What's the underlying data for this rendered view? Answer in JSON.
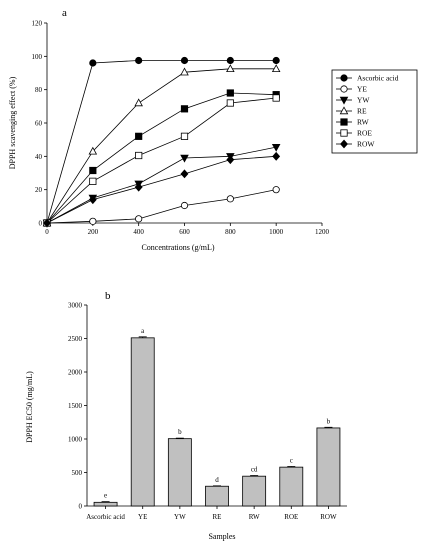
{
  "chart_data": [
    {
      "type": "line",
      "panel_label": "a",
      "xlabel": "Concentrations (\u0003g/mL)",
      "ylabel": "DPPH scavenging effect (%)",
      "xlim": [
        0,
        1200
      ],
      "ylim": [
        0,
        120
      ],
      "x_ticks": [
        "0",
        "200",
        "400",
        "600",
        "800",
        "1000",
        "1200"
      ],
      "y_ticks": [
        "0",
        "20",
        "40",
        "60",
        "80",
        "100",
        "120"
      ],
      "legend_position": "right",
      "x": [
        0,
        200,
        400,
        600,
        800,
        1000
      ],
      "series": [
        {
          "name": "Ascorbic acid",
          "marker": "filled-circle",
          "values": [
            0,
            96,
            97.5,
            97.5,
            97.5,
            97.5
          ]
        },
        {
          "name": "YE",
          "marker": "open-circle",
          "values": [
            0,
            1,
            2.5,
            10.5,
            14.5,
            20
          ]
        },
        {
          "name": "YW",
          "marker": "filled-triangle-down",
          "values": [
            0,
            15,
            23.5,
            39,
            40,
            45.5
          ]
        },
        {
          "name": "RE",
          "marker": "open-triangle-up",
          "values": [
            0,
            43,
            72,
            90.5,
            92.5,
            92.5
          ]
        },
        {
          "name": "RW",
          "marker": "filled-square",
          "values": [
            0,
            31.5,
            52,
            68.5,
            78,
            77
          ]
        },
        {
          "name": "ROE",
          "marker": "open-square",
          "values": [
            0,
            25,
            40.5,
            52,
            72,
            75
          ]
        },
        {
          "name": "ROW",
          "marker": "filled-diamond",
          "values": [
            0,
            14,
            21.5,
            29.5,
            38,
            40
          ]
        }
      ]
    },
    {
      "type": "bar",
      "panel_label": "b",
      "xlabel": "Samples",
      "ylabel": "DPPH EC50 (mg/mL)",
      "ylim": [
        0,
        3000
      ],
      "y_ticks": [
        "0",
        "500",
        "1000",
        "1500",
        "2000",
        "2500",
        "3000"
      ],
      "categories": [
        "Ascorbic acid",
        "YE",
        "YW",
        "RE",
        "RW",
        "ROE",
        "ROW"
      ],
      "values": [
        55,
        2510,
        1005,
        295,
        445,
        580,
        1165
      ],
      "errors": [
        10,
        15,
        8,
        6,
        10,
        10,
        10
      ],
      "labels": [
        "e",
        "a",
        "b",
        "d",
        "cd",
        "c",
        "b"
      ]
    }
  ]
}
